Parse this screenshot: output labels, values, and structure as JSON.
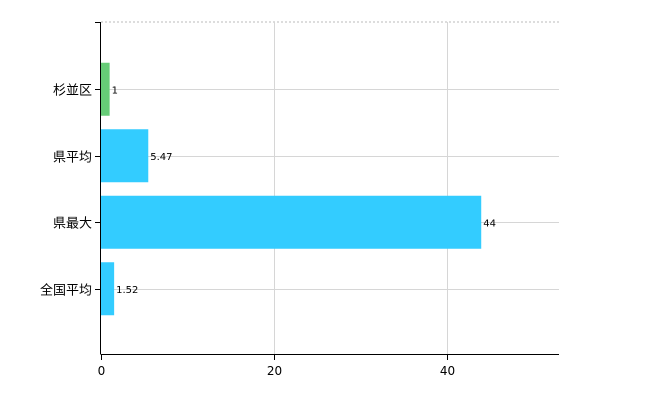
{
  "chart_data": {
    "type": "bar",
    "orientation": "horizontal",
    "categories": [
      "杉並区",
      "県平均",
      "県最大",
      "全国平均"
    ],
    "values": [
      1,
      5.47,
      44,
      1.52
    ],
    "data_labels": [
      "1",
      "5.47",
      "44",
      "1.52"
    ],
    "bar_colors": [
      "#66cc77",
      "#33ccff",
      "#33ccff",
      "#33ccff"
    ],
    "xlim": [
      0,
      53
    ],
    "x_ticks": [
      0,
      20,
      40
    ],
    "x_tick_labels": [
      "0",
      "20",
      "40"
    ],
    "grid": true,
    "title": "",
    "xlabel": "",
    "ylabel": ""
  }
}
